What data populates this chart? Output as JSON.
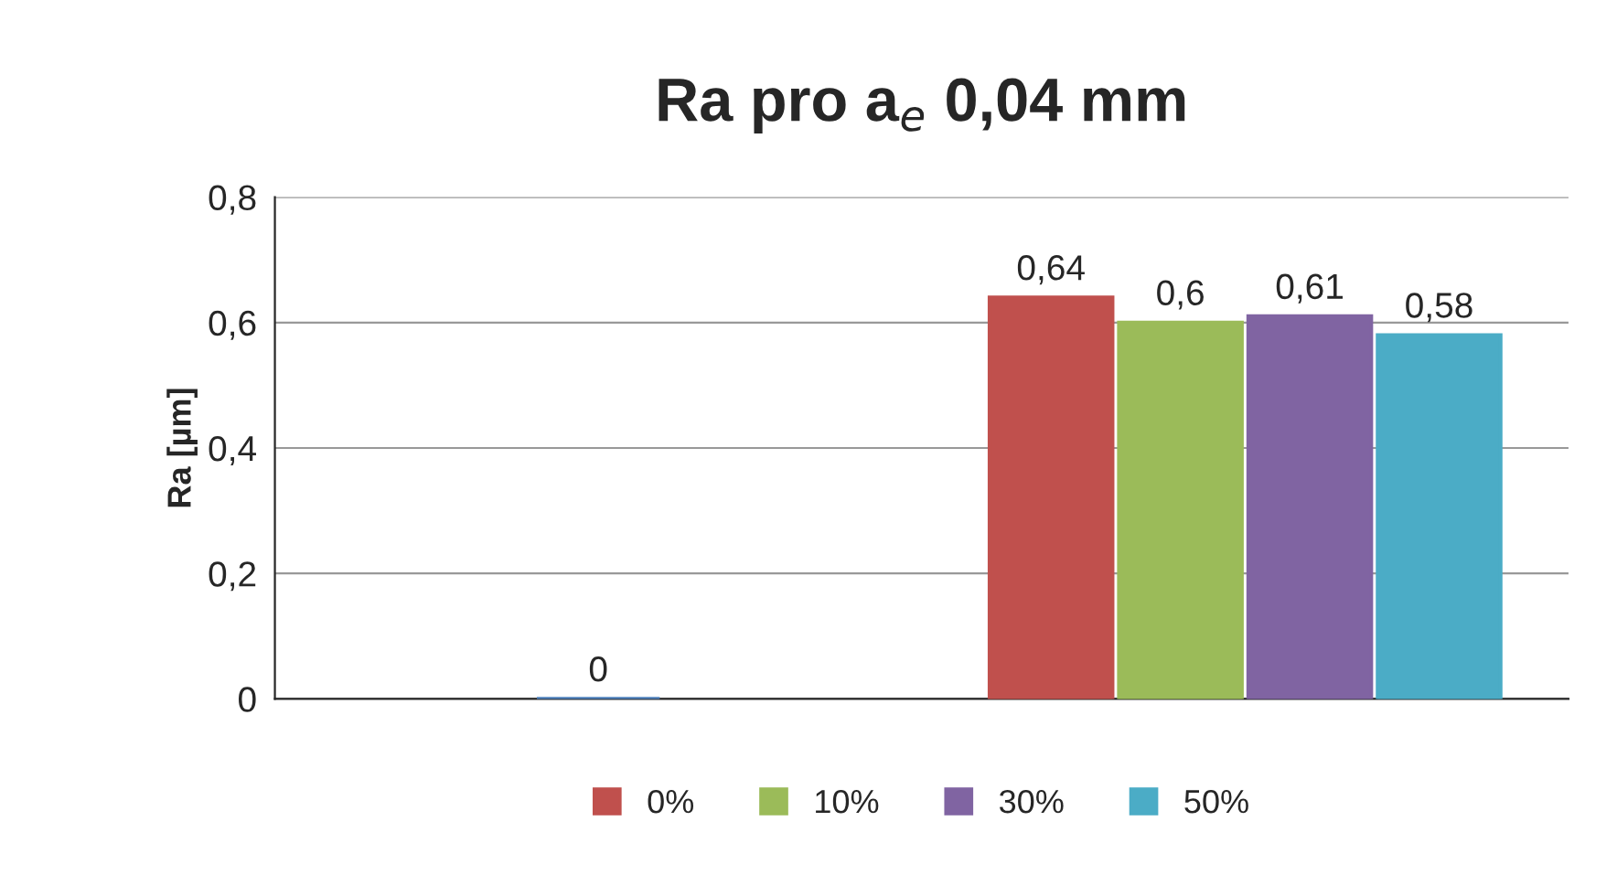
{
  "chart_data": {
    "type": "bar",
    "title": "Ra pro a$_{e}$ 0,04 mm",
    "ylabel": "Ra [µm]",
    "categories": [
      null,
      null
    ],
    "series": [
      {
        "color": "#4f81bd",
        "values": [
          0,
          null
        ],
        "value_labels": [
          "0",
          null
        ]
      },
      {
        "name": "0%",
        "color": "#c0504d",
        "values": [
          null,
          0.64
        ],
        "value_labels": [
          null,
          "0,64"
        ]
      },
      {
        "name": "10%",
        "color": "#9bbb59",
        "values": [
          null,
          0.6
        ],
        "value_labels": [
          null,
          "0,6"
        ]
      },
      {
        "name": "30%",
        "color": "#8064a2",
        "values": [
          null,
          0.61
        ],
        "value_labels": [
          null,
          "0,61"
        ]
      },
      {
        "name": "50%",
        "color": "#4bacc6",
        "values": [
          null,
          0.58
        ],
        "value_labels": [
          null,
          "0,58"
        ]
      }
    ],
    "ylim": [
      0,
      0.8
    ],
    "yticks": [
      {
        "value": 0,
        "label": "0"
      },
      {
        "value": 0.2,
        "label": "0,2"
      },
      {
        "value": 0.4,
        "label": "0,4"
      },
      {
        "value": 0.6,
        "label": "0,6"
      },
      {
        "value": 0.8,
        "label": "0,8"
      }
    ],
    "grid": "y",
    "legend": "bottom"
  }
}
